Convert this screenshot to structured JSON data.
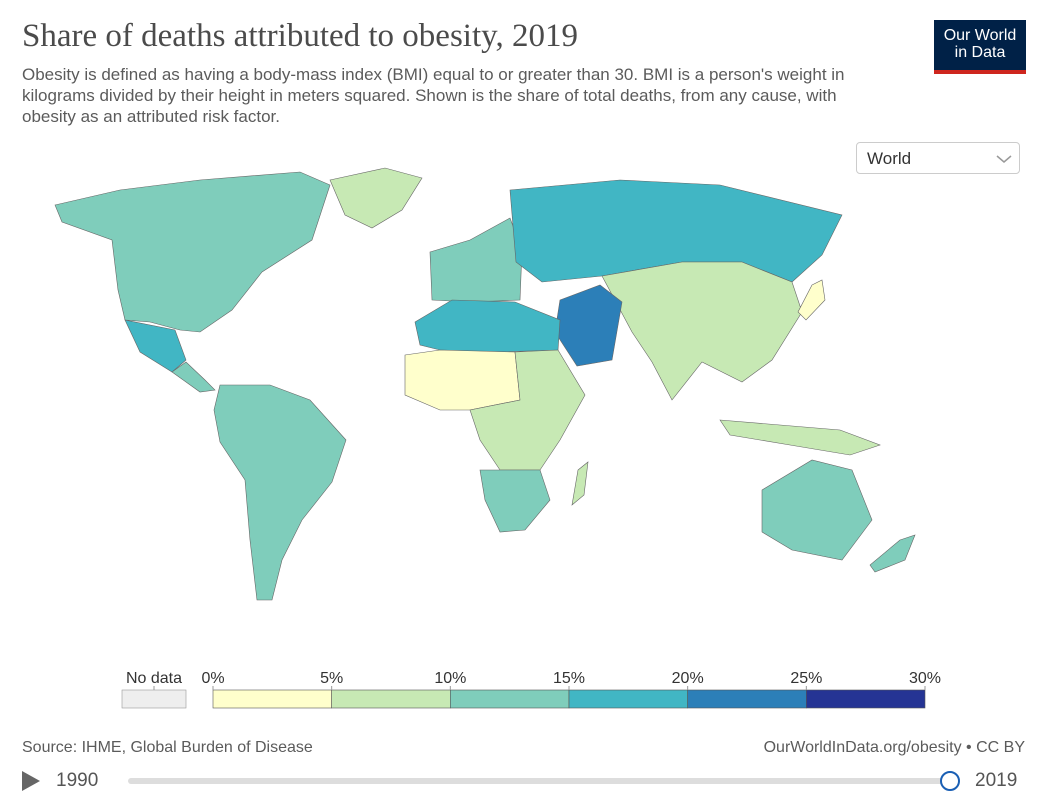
{
  "header": {
    "title": "Share of deaths attributed to obesity, 2019",
    "subtitle": "Obesity is defined as having a body-mass index (BMI) equal to or greater than 30. BMI is a person's weight in kilograms divided by their height in meters squared. Shown is the share of total deaths, from any cause, with obesity as an attributed risk factor.",
    "logo": [
      "Our World",
      "in Data"
    ]
  },
  "controls": {
    "region": "World"
  },
  "chart_data": {
    "type": "choropleth",
    "legend": {
      "no_data_label": "No data",
      "no_data_color": "#eeeeee",
      "ticks": [
        {
          "value": 0,
          "label": "0%"
        },
        {
          "value": 5,
          "label": "5%"
        },
        {
          "value": 10,
          "label": "10%"
        },
        {
          "value": 15,
          "label": "15%"
        },
        {
          "value": 20,
          "label": "20%"
        },
        {
          "value": 25,
          "label": "25%"
        },
        {
          "value": 30,
          "label": "30%"
        }
      ],
      "colors": [
        "#ffffcc",
        "#c7e9b4",
        "#7fcdbb",
        "#41b6c4",
        "#2c7fb8",
        "#253494"
      ]
    }
  },
  "footer": {
    "source": "Source: IHME, Global Burden of Disease",
    "url": "OurWorldInData.org/obesity • CC BY"
  },
  "timeline": {
    "start": 1990,
    "end": 2019
  }
}
